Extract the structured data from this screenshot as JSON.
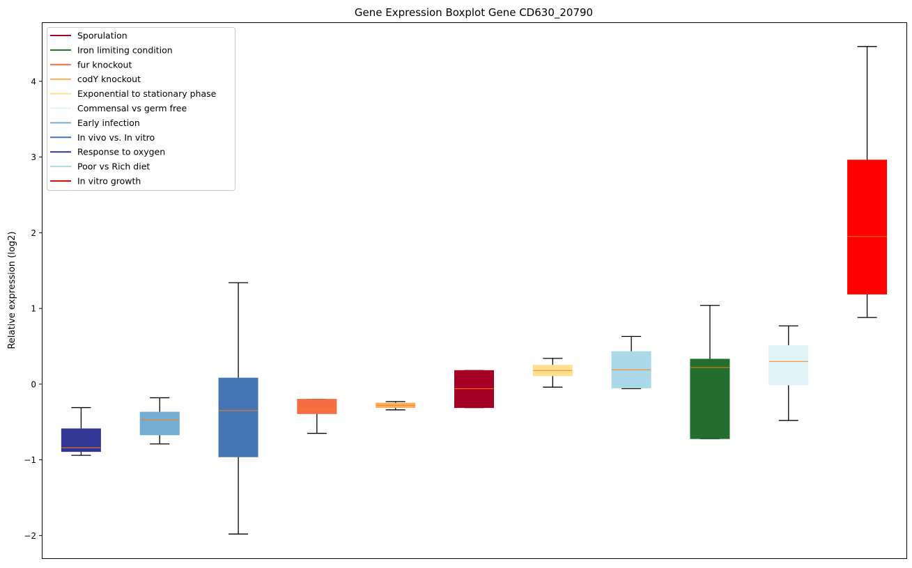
{
  "chart_data": {
    "type": "boxplot",
    "title": "Gene Expression Boxplot Gene CD630_20790",
    "xlabel": "",
    "ylabel": "Relative expression (log2)",
    "ylim": [
      -2.3,
      4.78
    ],
    "yticks": [
      -2,
      -1,
      0,
      1,
      2,
      3,
      4
    ],
    "ytick_labels": [
      "−2",
      "−1",
      "0",
      "1",
      "2",
      "3",
      "4"
    ],
    "grid": false,
    "legend_position": "top-left",
    "median_color": "#ff7f0e",
    "legend": [
      {
        "label": "Sporulation",
        "color": "#a50026"
      },
      {
        "label": "Iron limiting condition",
        "color": "#236e2e"
      },
      {
        "label": "fur knockout",
        "color": "#f46d43"
      },
      {
        "label": "codY knockout",
        "color": "#fdae61"
      },
      {
        "label": "Exponential to stationary phase",
        "color": "#fee090"
      },
      {
        "label": "Commensal vs germ free",
        "color": "#e0f3f8"
      },
      {
        "label": "Early infection",
        "color": "#74add1"
      },
      {
        "label": "In vivo vs. In vitro",
        "color": "#4575b4"
      },
      {
        "label": "Response to oxygen",
        "color": "#313695"
      },
      {
        "label": "Poor vs Rich diet",
        "color": "#abd9e9"
      },
      {
        "label": "In vitro growth",
        "color": "#ff0000"
      }
    ],
    "boxes": [
      {
        "name": "Response to oxygen",
        "color": "#313695",
        "whislo": -0.94,
        "q1": -0.89,
        "median": -0.84,
        "q3": -0.59,
        "whishi": -0.31
      },
      {
        "name": "Early infection",
        "color": "#74add1",
        "whislo": -0.79,
        "q1": -0.67,
        "median": -0.47,
        "q3": -0.37,
        "whishi": -0.18
      },
      {
        "name": "In vivo vs. In vitro",
        "color": "#4575b4",
        "whislo": -1.98,
        "q1": -0.96,
        "median": -0.35,
        "q3": 0.08,
        "whishi": 1.34
      },
      {
        "name": "fur knockout",
        "color": "#f46d43",
        "whislo": -0.65,
        "q1": -0.39,
        "median": -0.33,
        "q3": -0.2,
        "whishi": -0.2
      },
      {
        "name": "codY knockout",
        "color": "#fdae61",
        "whislo": -0.34,
        "q1": -0.31,
        "median": -0.28,
        "q3": -0.25,
        "whishi": -0.23
      },
      {
        "name": "Sporulation",
        "color": "#a50026",
        "whislo": -0.31,
        "q1": -0.31,
        "median": -0.06,
        "q3": 0.18,
        "whishi": 0.18
      },
      {
        "name": "Exponential to stationary phase",
        "color": "#fee090",
        "whislo": -0.04,
        "q1": 0.11,
        "median": 0.18,
        "q3": 0.25,
        "whishi": 0.34
      },
      {
        "name": "Poor vs Rich diet",
        "color": "#abd9e9",
        "whislo": -0.06,
        "q1": -0.05,
        "median": 0.19,
        "q3": 0.43,
        "whishi": 0.63
      },
      {
        "name": "Iron limiting condition",
        "color": "#236e2e",
        "whislo": -0.72,
        "q1": -0.72,
        "median": 0.22,
        "q3": 0.33,
        "whishi": 1.04
      },
      {
        "name": "Commensal vs germ free",
        "color": "#e0f3f8",
        "whislo": -0.48,
        "q1": -0.01,
        "median": 0.3,
        "q3": 0.51,
        "whishi": 0.77
      },
      {
        "name": "In vitro growth",
        "color": "#ff0000",
        "whislo": 0.88,
        "q1": 1.19,
        "median": 1.95,
        "q3": 2.96,
        "whishi": 4.46
      }
    ]
  }
}
